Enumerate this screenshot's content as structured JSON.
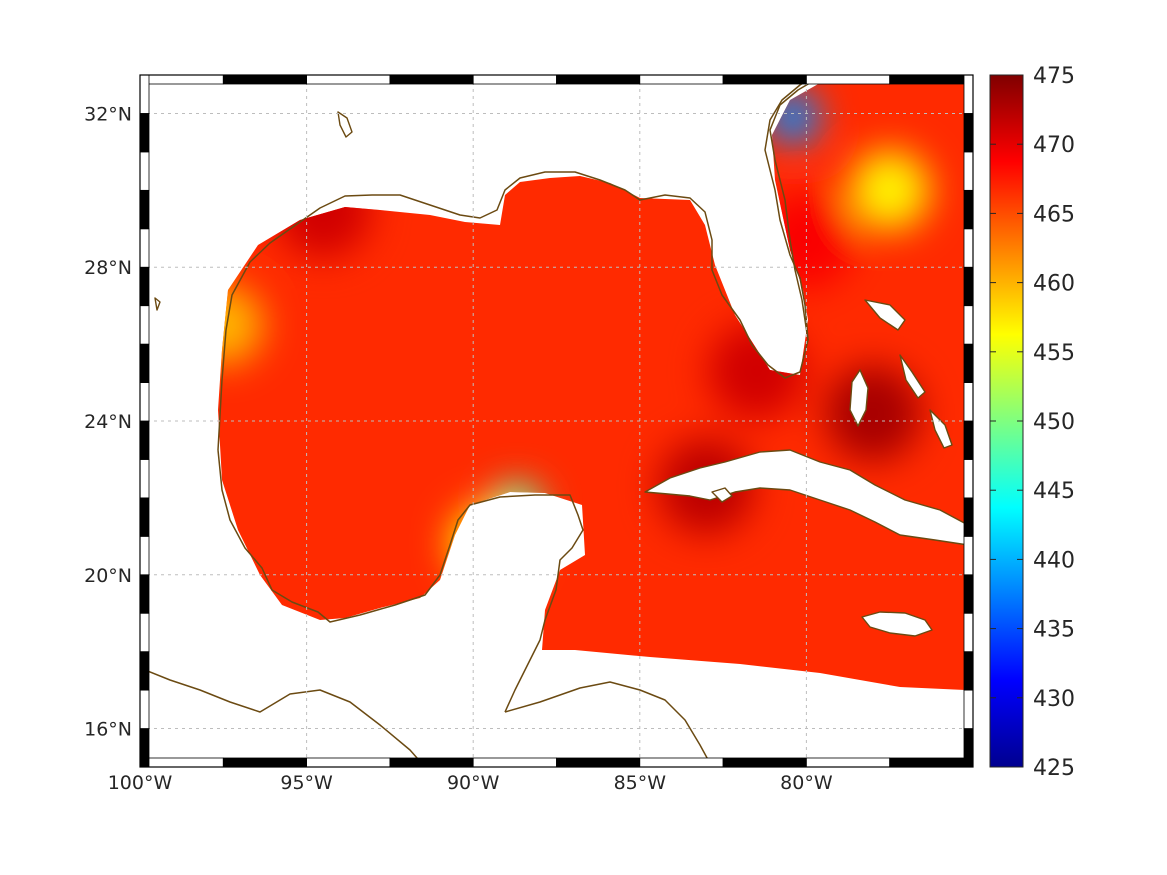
{
  "map": {
    "region": "Gulf of Mexico and Caribbean",
    "lon_range": [
      -100,
      -75
    ],
    "lat_range": [
      15,
      33
    ],
    "colormap": "jet",
    "grid": true,
    "coastline_color": "#6b4a12",
    "land_color": "#ffffff",
    "lon_ticks": [
      {
        "value": -100,
        "label": "100°W"
      },
      {
        "value": -95,
        "label": "95°W"
      },
      {
        "value": -90,
        "label": "90°W"
      },
      {
        "value": -85,
        "label": "85°W"
      },
      {
        "value": -80,
        "label": "80°W"
      }
    ],
    "lat_ticks": [
      {
        "value": 16,
        "label": "16°N"
      },
      {
        "value": 20,
        "label": "20°N"
      },
      {
        "value": 24,
        "label": "24°N"
      },
      {
        "value": 28,
        "label": "28°N"
      },
      {
        "value": 32,
        "label": "32°N"
      }
    ]
  },
  "colorbar": {
    "min": 425,
    "max": 475,
    "placement": "right",
    "ticks": [
      {
        "value": 475,
        "label": "475"
      },
      {
        "value": 470,
        "label": "470"
      },
      {
        "value": 465,
        "label": "465"
      },
      {
        "value": 460,
        "label": "460"
      },
      {
        "value": 455,
        "label": "455"
      },
      {
        "value": 450,
        "label": "450"
      },
      {
        "value": 445,
        "label": "445"
      },
      {
        "value": 440,
        "label": "440"
      },
      {
        "value": 435,
        "label": "435"
      },
      {
        "value": 430,
        "label": "430"
      },
      {
        "value": 425,
        "label": "425"
      }
    ]
  },
  "features": [
    {
      "name": "high",
      "lon": -94.5,
      "lat": 29.5,
      "value": 471
    },
    {
      "name": "high",
      "lon": -83,
      "lat": 22.3,
      "value": 472
    },
    {
      "name": "high",
      "lon": -78,
      "lat": 24.2,
      "value": 473
    },
    {
      "name": "high",
      "lon": -81.5,
      "lat": 25.3,
      "value": 471
    },
    {
      "name": "high",
      "lon": -80,
      "lat": 28.7,
      "value": 469
    },
    {
      "name": "low",
      "lon": -88.7,
      "lat": 21.7,
      "value": 448
    },
    {
      "name": "low",
      "lon": -80.4,
      "lat": 31.9,
      "value": 438
    },
    {
      "name": "moderate",
      "lon": -77.5,
      "lat": 30.0,
      "value": 457
    },
    {
      "name": "moderate",
      "lon": -97.5,
      "lat": 26.5,
      "value": 460
    },
    {
      "name": "moderate",
      "lon": -89.5,
      "lat": 20.8,
      "value": 457
    }
  ]
}
